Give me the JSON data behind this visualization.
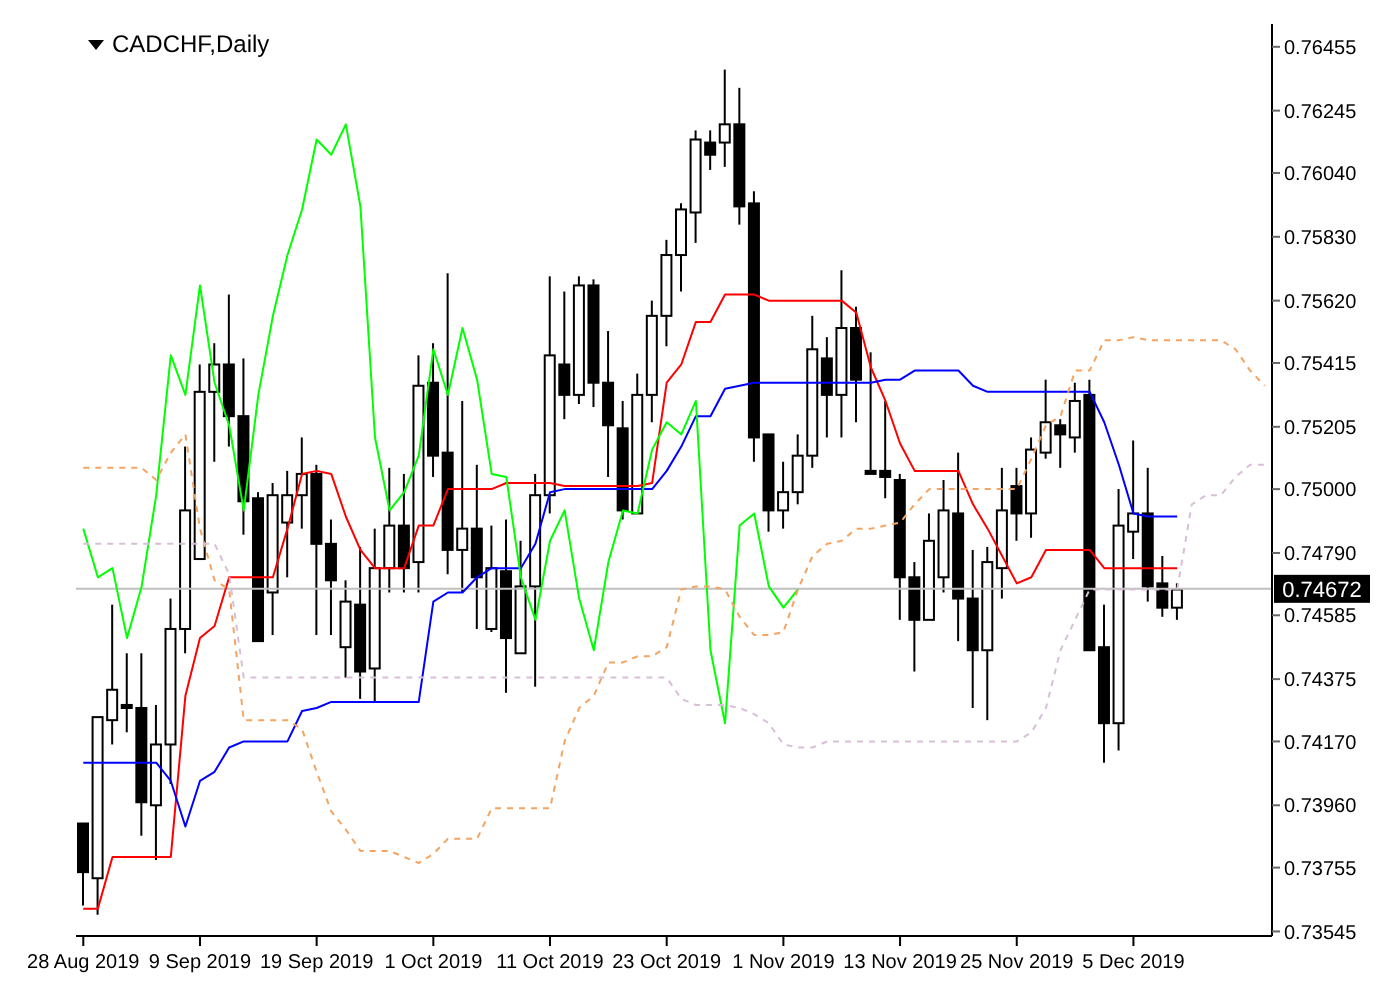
{
  "chart_data": {
    "type": "candlestick",
    "title": "CADCHF,Daily",
    "categories": [
      "28 Aug 2019",
      null,
      null,
      null,
      null,
      null,
      null,
      null,
      "9 Sep 2019",
      null,
      null,
      null,
      null,
      null,
      null,
      null,
      "19 Sep 2019",
      null,
      null,
      null,
      null,
      null,
      null,
      null,
      "1 Oct 2019",
      null,
      null,
      null,
      null,
      null,
      null,
      null,
      "11 Oct 2019",
      null,
      null,
      null,
      null,
      null,
      null,
      null,
      "23 Oct 2019",
      null,
      null,
      null,
      null,
      null,
      null,
      null,
      "1 Nov 2019",
      null,
      null,
      null,
      null,
      null,
      null,
      null,
      "13 Nov 2019",
      null,
      null,
      null,
      null,
      null,
      null,
      null,
      "25 Nov 2019",
      null,
      null,
      null,
      null,
      null,
      null,
      null,
      "5 Dec 2019",
      null,
      null,
      null,
      null,
      null,
      null,
      null,
      null,
      null
    ],
    "ohlc": [
      [
        0.739,
        0.739,
        0.7363,
        0.7374
      ],
      [
        0.7372,
        0.7425,
        0.736,
        0.7425
      ],
      [
        0.7424,
        0.7462,
        0.7416,
        0.7434
      ],
      [
        0.7429,
        0.7446,
        0.742,
        0.7428
      ],
      [
        0.7428,
        0.7446,
        0.7386,
        0.7397
      ],
      [
        0.7396,
        0.7429,
        0.7378,
        0.7416
      ],
      [
        0.7416,
        0.7464,
        0.7403,
        0.7454
      ],
      [
        0.7454,
        0.7514,
        0.7446,
        0.7493
      ],
      [
        0.7477,
        0.7541,
        0.7477,
        0.7532
      ],
      [
        0.7532,
        0.7548,
        0.7509,
        0.7541
      ],
      [
        0.7541,
        0.7564,
        0.7514,
        0.7524
      ],
      [
        0.7524,
        0.7543,
        0.7485,
        0.7496
      ],
      [
        0.7497,
        0.7499,
        0.745,
        0.745
      ],
      [
        0.7466,
        0.7502,
        0.7452,
        0.7498
      ],
      [
        0.7489,
        0.7506,
        0.7471,
        0.7498
      ],
      [
        0.7498,
        0.7517,
        0.7487,
        0.7505
      ],
      [
        0.7505,
        0.7508,
        0.7452,
        0.7482
      ],
      [
        0.7482,
        0.749,
        0.7452,
        0.747
      ],
      [
        0.7448,
        0.747,
        0.7438,
        0.7463
      ],
      [
        0.7462,
        0.7481,
        0.7431,
        0.744
      ],
      [
        0.7441,
        0.7487,
        0.743,
        0.7474
      ],
      [
        0.7474,
        0.7507,
        0.7466,
        0.7488
      ],
      [
        0.7488,
        0.7505,
        0.7466,
        0.7474
      ],
      [
        0.7476,
        0.7544,
        0.7466,
        0.7534
      ],
      [
        0.7535,
        0.7548,
        0.7504,
        0.7511
      ],
      [
        0.7512,
        0.7571,
        0.7472,
        0.748
      ],
      [
        0.748,
        0.7529,
        0.7466,
        0.7487
      ],
      [
        0.7487,
        0.7508,
        0.7454,
        0.7471
      ],
      [
        0.7454,
        0.7488,
        0.7453,
        0.7474
      ],
      [
        0.7473,
        0.749,
        0.7433,
        0.7451
      ],
      [
        0.7446,
        0.7483,
        0.7446,
        0.7468
      ],
      [
        0.7468,
        0.7505,
        0.7435,
        0.7498
      ],
      [
        0.7498,
        0.757,
        0.7492,
        0.7544
      ],
      [
        0.7541,
        0.7565,
        0.7523,
        0.7531
      ],
      [
        0.7531,
        0.757,
        0.7528,
        0.7567
      ],
      [
        0.7567,
        0.7569,
        0.7527,
        0.7535
      ],
      [
        0.7535,
        0.7552,
        0.7504,
        0.7521
      ],
      [
        0.752,
        0.7529,
        0.749,
        0.7493
      ],
      [
        0.7492,
        0.7538,
        0.7492,
        0.7531
      ],
      [
        0.7531,
        0.7562,
        0.7522,
        0.7557
      ],
      [
        0.7557,
        0.7582,
        0.7547,
        0.7577
      ],
      [
        0.7577,
        0.7594,
        0.7565,
        0.7592
      ],
      [
        0.7591,
        0.7618,
        0.7581,
        0.7615
      ],
      [
        0.7614,
        0.7618,
        0.7605,
        0.761
      ],
      [
        0.7614,
        0.7638,
        0.7606,
        0.762
      ],
      [
        0.762,
        0.7632,
        0.7587,
        0.7593
      ],
      [
        0.7594,
        0.7598,
        0.7509,
        0.7517
      ],
      [
        0.7518,
        0.7518,
        0.7486,
        0.7493
      ],
      [
        0.7493,
        0.7509,
        0.7487,
        0.7499
      ],
      [
        0.7499,
        0.7518,
        0.7495,
        0.7511
      ],
      [
        0.7511,
        0.7557,
        0.7507,
        0.7546
      ],
      [
        0.7543,
        0.755,
        0.7517,
        0.7531
      ],
      [
        0.7531,
        0.7572,
        0.7517,
        0.7553
      ],
      [
        0.7553,
        0.756,
        0.7522,
        0.7536
      ],
      [
        0.7506,
        0.7545,
        0.7505,
        0.7505
      ],
      [
        0.7506,
        0.7529,
        0.7497,
        0.7504
      ],
      [
        0.7503,
        0.7505,
        0.7457,
        0.7471
      ],
      [
        0.7471,
        0.7476,
        0.744,
        0.7457
      ],
      [
        0.7457,
        0.7492,
        0.7457,
        0.7483
      ],
      [
        0.7471,
        0.7503,
        0.7466,
        0.7493
      ],
      [
        0.7492,
        0.7512,
        0.745,
        0.7464
      ],
      [
        0.7464,
        0.748,
        0.7428,
        0.7447
      ],
      [
        0.7447,
        0.7481,
        0.7424,
        0.7476
      ],
      [
        0.7474,
        0.7507,
        0.7464,
        0.7493
      ],
      [
        0.7501,
        0.7507,
        0.7483,
        0.7492
      ],
      [
        0.7492,
        0.7517,
        0.7484,
        0.7513
      ],
      [
        0.7512,
        0.7536,
        0.751,
        0.7522
      ],
      [
        0.7521,
        0.7523,
        0.7507,
        0.7518
      ],
      [
        0.7517,
        0.7535,
        0.7512,
        0.7529
      ],
      [
        0.7531,
        0.7536,
        0.7447,
        0.7447
      ],
      [
        0.7448,
        0.7462,
        0.741,
        0.7423
      ],
      [
        0.7423,
        0.75,
        0.7414,
        0.7488
      ],
      [
        0.7486,
        0.7516,
        0.7477,
        0.7492
      ],
      [
        0.7492,
        0.7507,
        0.7463,
        0.7468
      ],
      [
        0.7469,
        0.7478,
        0.7458,
        0.7461
      ],
      [
        0.7461,
        0.7469,
        0.7457,
        0.7467
      ],
      null,
      null,
      null,
      null,
      null,
      null
    ],
    "series": [
      {
        "type": "line",
        "color": "#ff0000",
        "line_style": "solid",
        "values": [
          0.7362,
          0.7362,
          0.7379,
          0.7379,
          0.7379,
          0.7379,
          0.7379,
          0.7432,
          0.7451,
          0.7455,
          0.7471,
          0.7471,
          0.7471,
          0.7471,
          0.7487,
          0.7505,
          0.7506,
          0.7505,
          0.7491,
          0.748,
          0.7474,
          0.7474,
          0.7474,
          0.7488,
          0.7488,
          0.75,
          0.75,
          0.75,
          0.75,
          0.7502,
          0.7502,
          0.7502,
          0.7502,
          0.7501,
          0.7501,
          0.7501,
          0.7501,
          0.7501,
          0.7501,
          0.7502,
          0.7535,
          0.7541,
          0.7555,
          0.7555,
          0.7564,
          0.7564,
          0.7564,
          0.7562,
          0.7562,
          0.7562,
          0.7562,
          0.7562,
          0.7562,
          0.7558,
          0.754,
          0.7529,
          0.7515,
          0.7506,
          0.7506,
          0.7506,
          0.7506,
          0.7495,
          0.7487,
          0.7478,
          0.7469,
          0.7471,
          0.748,
          0.748,
          0.748,
          0.748,
          0.7474,
          0.7474,
          0.7474,
          0.7474,
          0.7474,
          0.7474,
          null,
          null,
          null,
          null,
          null,
          null
        ]
      },
      {
        "type": "line",
        "color": "#0000ff",
        "line_style": "solid",
        "values": [
          0.741,
          0.741,
          0.741,
          0.741,
          0.741,
          0.741,
          0.7404,
          0.7389,
          0.7404,
          0.7407,
          0.7415,
          0.7417,
          0.7417,
          0.7417,
          0.7417,
          0.7427,
          0.7428,
          0.743,
          0.743,
          0.743,
          0.743,
          0.743,
          0.743,
          0.743,
          0.7463,
          0.7466,
          0.7466,
          0.7471,
          0.7474,
          0.7474,
          0.7474,
          0.7482,
          0.7499,
          0.75,
          0.75,
          0.75,
          0.75,
          0.75,
          0.75,
          0.75,
          0.7506,
          0.7514,
          0.7524,
          0.7524,
          0.7533,
          0.7534,
          0.7535,
          0.7535,
          0.7535,
          0.7535,
          0.7535,
          0.7535,
          0.7535,
          0.7535,
          0.7535,
          0.7536,
          0.7536,
          0.7539,
          0.7539,
          0.7539,
          0.7539,
          0.7534,
          0.7532,
          0.7532,
          0.7532,
          0.7532,
          0.7532,
          0.7532,
          0.7532,
          0.7532,
          0.7522,
          0.7508,
          0.7492,
          0.7491,
          0.7491,
          0.7491,
          null,
          null,
          null,
          null,
          null,
          null
        ]
      },
      {
        "type": "line",
        "color": "#00ff00",
        "line_style": "solid",
        "values": [
          0.7487,
          0.7471,
          0.7474,
          0.7451,
          0.7468,
          0.7498,
          0.7544,
          0.7531,
          0.7567,
          0.7535,
          0.7521,
          0.7493,
          0.7531,
          0.7557,
          0.7577,
          0.7592,
          0.7615,
          0.761,
          0.762,
          0.7593,
          0.7517,
          0.7493,
          0.7499,
          0.7511,
          0.7546,
          0.7531,
          0.7553,
          0.7536,
          0.7505,
          0.7504,
          0.7471,
          0.7457,
          0.7483,
          0.7493,
          0.7464,
          0.7447,
          0.7476,
          0.7493,
          0.7492,
          0.7513,
          0.7522,
          0.7518,
          0.7529,
          0.7447,
          0.7423,
          0.7488,
          0.7492,
          0.7468,
          0.7461,
          0.7467,
          null,
          null,
          null,
          null,
          null,
          null,
          null,
          null,
          null,
          null,
          null,
          null,
          null,
          null,
          null,
          null,
          null,
          null,
          null,
          null,
          null,
          null,
          null,
          null,
          null,
          null,
          null,
          null,
          null,
          null,
          null,
          null
        ]
      },
      {
        "type": "line",
        "color": "#f4a460",
        "line_style": "dashed",
        "values": [
          0.7507,
          0.7507,
          0.7507,
          0.7507,
          0.7507,
          0.7503,
          0.7512,
          0.7518,
          0.7487,
          0.747,
          0.7467,
          0.7424,
          0.7424,
          0.7424,
          0.7424,
          0.7421,
          0.7407,
          0.7394,
          0.7388,
          0.7381,
          0.7381,
          0.7381,
          0.7379,
          0.7377,
          0.738,
          0.7385,
          0.7385,
          0.7385,
          0.7395,
          0.7395,
          0.7395,
          0.7395,
          0.7395,
          0.7417,
          0.7428,
          0.7432,
          0.7443,
          0.7443,
          0.7445,
          0.7445,
          0.7448,
          0.7467,
          0.7468,
          0.7468,
          0.7467,
          0.7458,
          0.7452,
          0.7452,
          0.7453,
          0.7467,
          0.7478,
          0.7482,
          0.7483,
          0.7487,
          0.7487,
          0.7488,
          0.7489,
          0.7495,
          0.75,
          0.75,
          0.75,
          0.75,
          0.75,
          0.75,
          0.75,
          0.751,
          0.7521,
          0.7524,
          0.7539,
          0.7539,
          0.7549,
          0.7549,
          0.755,
          0.7549,
          0.7549,
          0.7549,
          0.7549,
          0.7549,
          0.7549,
          0.7546,
          0.7539,
          0.7534
        ]
      },
      {
        "type": "line",
        "color": "#d8bfd8",
        "line_style": "dashed",
        "values": [
          0.7482,
          0.7482,
          0.7482,
          0.7482,
          0.7482,
          0.7482,
          0.7482,
          0.7482,
          0.7482,
          0.7482,
          0.7472,
          0.7438,
          0.7438,
          0.7438,
          0.7438,
          0.7438,
          0.7438,
          0.7438,
          0.7438,
          0.7438,
          0.7438,
          0.7438,
          0.7438,
          0.7438,
          0.7438,
          0.7438,
          0.7438,
          0.7438,
          0.7438,
          0.7438,
          0.7438,
          0.7438,
          0.7438,
          0.7438,
          0.7438,
          0.7438,
          0.7438,
          0.7438,
          0.7438,
          0.7438,
          0.7438,
          0.7431,
          0.7429,
          0.7429,
          0.7429,
          0.7428,
          0.7426,
          0.7423,
          0.7416,
          0.7415,
          0.7415,
          0.7417,
          0.7417,
          0.7417,
          0.7417,
          0.7417,
          0.7417,
          0.7417,
          0.7417,
          0.7417,
          0.7417,
          0.7417,
          0.7417,
          0.7417,
          0.7417,
          0.742,
          0.7428,
          0.7447,
          0.7457,
          0.7467,
          0.7467,
          0.7467,
          0.7467,
          0.7467,
          0.7467,
          0.7467,
          0.7495,
          0.7498,
          0.7498,
          0.7504,
          0.7508,
          0.7508
        ]
      }
    ],
    "marker": "none",
    "ylim": [
      0.7353,
      0.7653
    ],
    "yticks": [
      0.76455,
      0.76245,
      {
        "value": 0.7604,
        "label": "0.76040"
      },
      {
        "value": 0.7583,
        "label": "0.75830"
      },
      {
        "value": 0.7562,
        "label": "0.75620"
      },
      0.75415,
      0.75205,
      {
        "value": 0.75,
        "label": "0.75000"
      },
      {
        "value": 0.7479,
        "label": "0.74790"
      },
      0.74585,
      0.74375,
      {
        "value": 0.7417,
        "label": "0.74170"
      },
      {
        "value": 0.7396,
        "label": "0.73960"
      },
      0.73755,
      0.73545
    ],
    "ref_lines": [
      {
        "axis": "y",
        "value": 0.74672,
        "label": "0.74672",
        "color": "#c0c0c0"
      }
    ]
  }
}
